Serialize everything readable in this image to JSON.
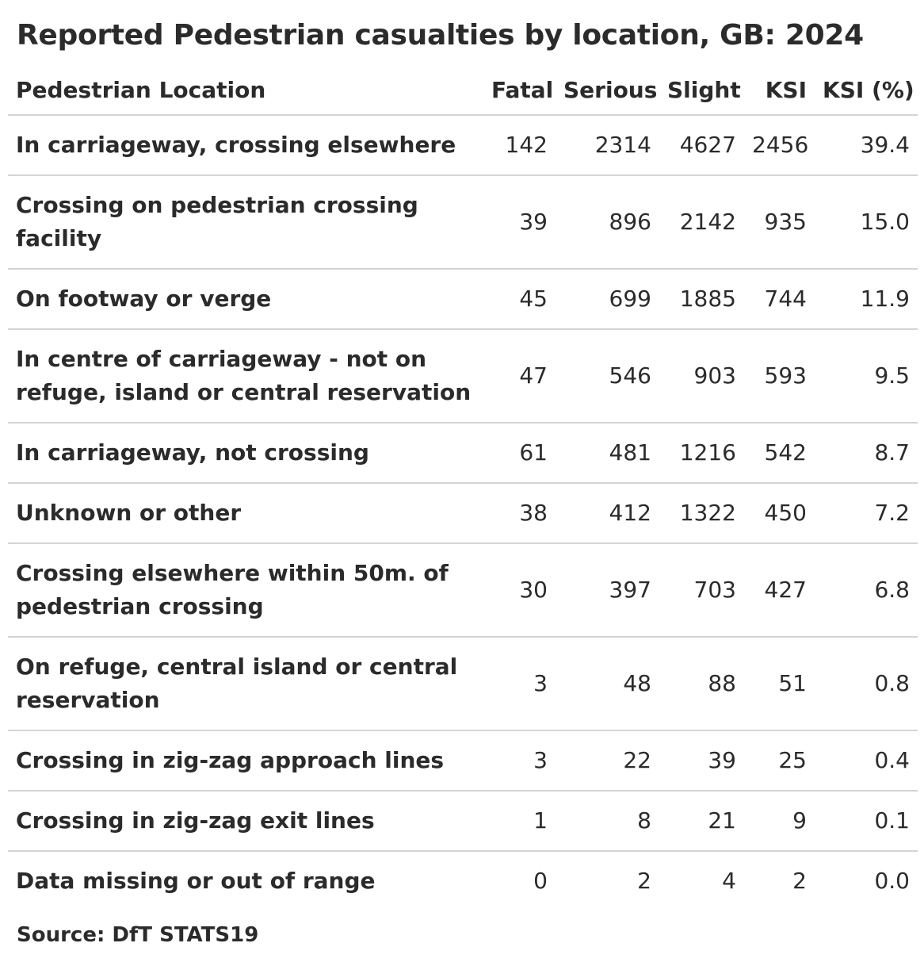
{
  "chart_data": {
    "type": "table",
    "title": "Reported Pedestrian casualties by location, GB: 2024",
    "columns": [
      "Pedestrian Location",
      "Fatal",
      "Serious",
      "Slight",
      "KSI",
      "KSI (%)"
    ],
    "rows": [
      {
        "location": "In carriageway, crossing elsewhere",
        "fatal": "142",
        "serious": "2314",
        "slight": "4627",
        "ksi": "2456",
        "ksi_pct": "39.4"
      },
      {
        "location": "Crossing on pedestrian crossing facility",
        "fatal": "39",
        "serious": "896",
        "slight": "2142",
        "ksi": "935",
        "ksi_pct": "15.0"
      },
      {
        "location": "On footway or verge",
        "fatal": "45",
        "serious": "699",
        "slight": "1885",
        "ksi": "744",
        "ksi_pct": "11.9"
      },
      {
        "location": "In centre of carriageway - not on refuge, island or central reservation",
        "fatal": "47",
        "serious": "546",
        "slight": "903",
        "ksi": "593",
        "ksi_pct": "9.5"
      },
      {
        "location": "In carriageway, not crossing",
        "fatal": "61",
        "serious": "481",
        "slight": "1216",
        "ksi": "542",
        "ksi_pct": "8.7"
      },
      {
        "location": "Unknown or other",
        "fatal": "38",
        "serious": "412",
        "slight": "1322",
        "ksi": "450",
        "ksi_pct": "7.2"
      },
      {
        "location": "Crossing elsewhere within 50m. of pedestrian crossing",
        "fatal": "30",
        "serious": "397",
        "slight": "703",
        "ksi": "427",
        "ksi_pct": "6.8"
      },
      {
        "location": "On refuge, central island or central reservation",
        "fatal": "3",
        "serious": "48",
        "slight": "88",
        "ksi": "51",
        "ksi_pct": "0.8"
      },
      {
        "location": "Crossing in zig-zag approach lines",
        "fatal": "3",
        "serious": "22",
        "slight": "39",
        "ksi": "25",
        "ksi_pct": "0.4"
      },
      {
        "location": "Crossing in zig-zag exit lines",
        "fatal": "1",
        "serious": "8",
        "slight": "21",
        "ksi": "9",
        "ksi_pct": "0.1"
      },
      {
        "location": "Data missing or out of range",
        "fatal": "0",
        "serious": "2",
        "slight": "4",
        "ksi": "2",
        "ksi_pct": "0.0"
      }
    ],
    "source": "Source: DfT STATS19"
  }
}
